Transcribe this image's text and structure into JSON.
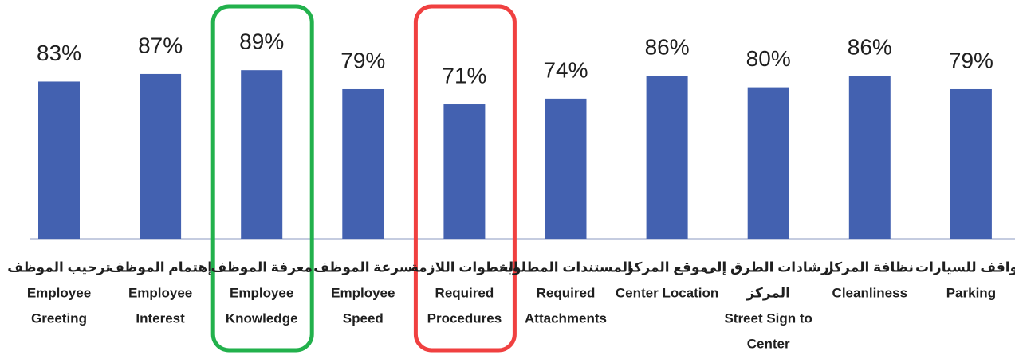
{
  "chart_data": {
    "type": "bar",
    "categories": [
      [
        "ترحيب الموظف",
        "Employee",
        "Greeting"
      ],
      [
        "إهتمام الموظف",
        "Employee",
        "Interest"
      ],
      [
        "معرفة الموظف",
        "Employee",
        "Knowledge"
      ],
      [
        "سرعة الموظف",
        "Employee",
        "Speed"
      ],
      [
        "الخطوات اللازمة",
        "Required",
        "Procedures"
      ],
      [
        "المستندات المطلوبة",
        "Required",
        "Attachments"
      ],
      [
        "موقع المركز",
        "Center Location"
      ],
      [
        "ارشادات الطرق إلى",
        "المركز",
        "Street Sign to",
        "Center"
      ],
      [
        "نظافة المركز",
        "Cleanliness"
      ],
      [
        "مواقف للسيارات",
        "Parking"
      ]
    ],
    "values": [
      83,
      87,
      89,
      79,
      71,
      74,
      86,
      80,
      86,
      79
    ],
    "value_labels": [
      "83%",
      "87%",
      "89%",
      "79%",
      "71%",
      "74%",
      "86%",
      "80%",
      "86%",
      "79%"
    ],
    "color": "#4361b0",
    "ylim": [
      0,
      100
    ],
    "highlights": [
      {
        "index": 2,
        "color": "#22b14c"
      },
      {
        "index": 4,
        "color": "#f04040"
      }
    ]
  }
}
